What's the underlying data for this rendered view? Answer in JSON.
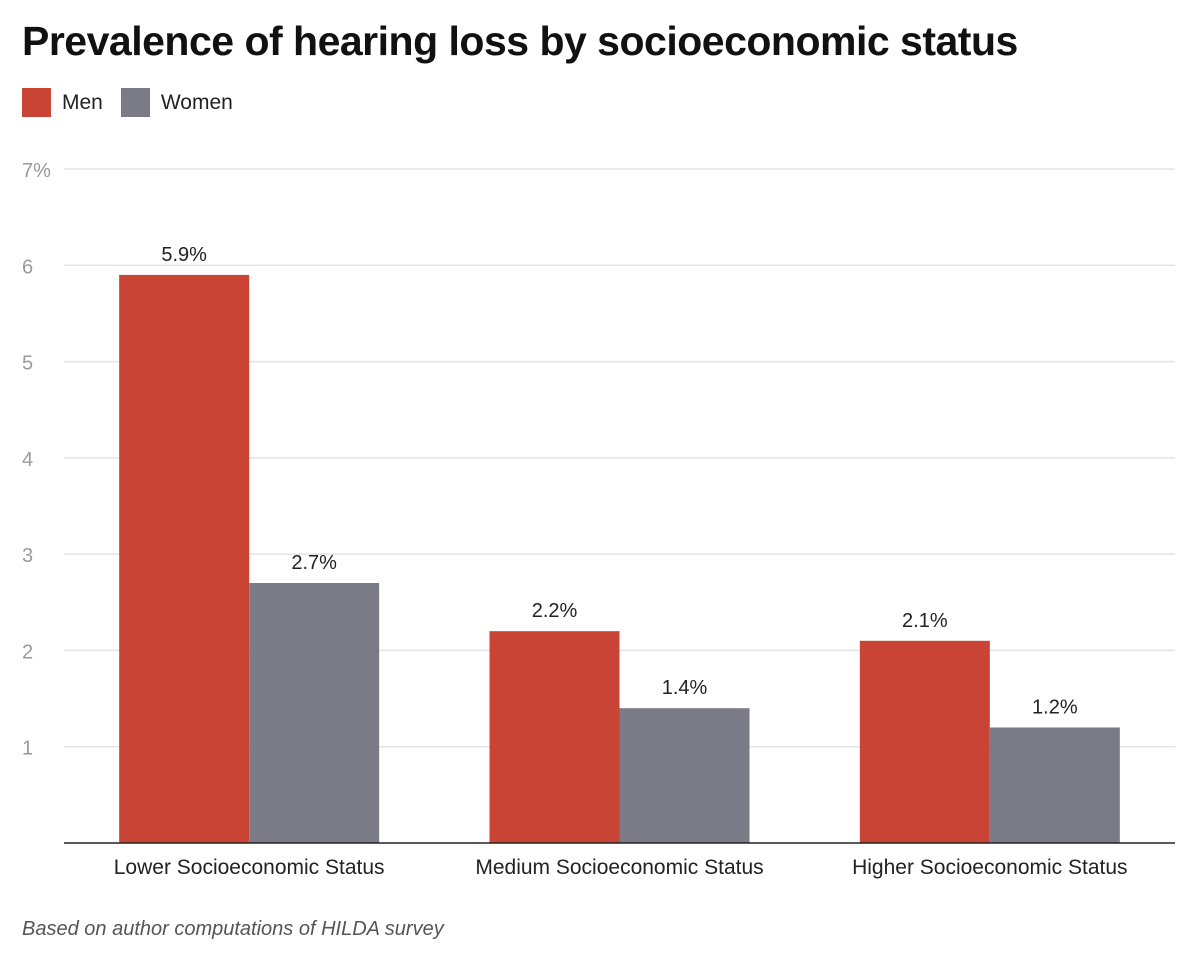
{
  "title": "Prevalence of hearing loss by socioeconomic status",
  "note": "Based on author computations of HILDA survey",
  "legend": [
    {
      "label": "Men",
      "color": "#c94435"
    },
    {
      "label": "Women",
      "color": "#7b7b87"
    }
  ],
  "chart_data": {
    "type": "bar",
    "categories": [
      "Lower Socioeconomic Status",
      "Medium Socioeconomic Status",
      "Higher Socioeconomic Status"
    ],
    "series": [
      {
        "name": "Men",
        "color": "#c94435",
        "values": [
          5.9,
          2.2,
          2.1
        ],
        "labels": [
          "5.9%",
          "2.2%",
          "2.1%"
        ]
      },
      {
        "name": "Women",
        "color": "#7b7b87",
        "values": [
          2.7,
          1.4,
          1.2
        ],
        "labels": [
          "2.7%",
          "1.4%",
          "1.2%"
        ]
      }
    ],
    "ylim": [
      0,
      7
    ],
    "yticks": [
      1,
      2,
      3,
      4,
      5,
      6,
      7
    ],
    "ytick_labels": [
      "1",
      "2",
      "3",
      "4",
      "5",
      "6",
      "7%"
    ],
    "grid": true,
    "legend_position": "top-left"
  }
}
